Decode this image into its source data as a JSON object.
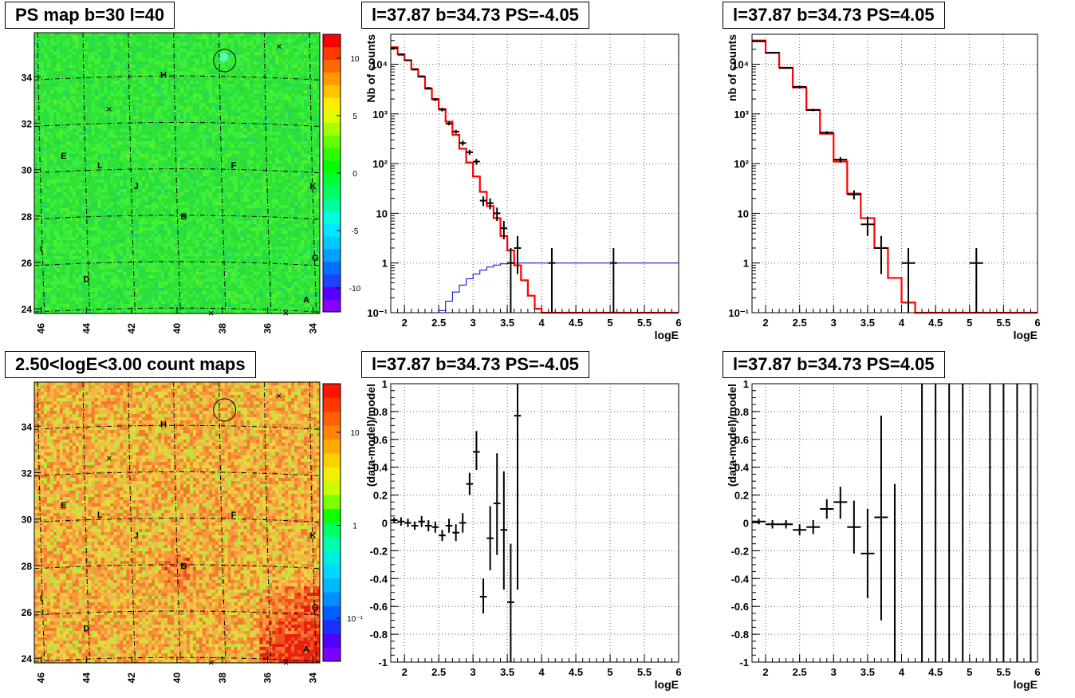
{
  "panels": [
    {
      "title": "PS map b=30 l=40",
      "type": "heatmap",
      "xticks": [
        46,
        44,
        42,
        40,
        38,
        36,
        34
      ],
      "yticks": [
        24,
        26,
        28,
        30,
        32,
        34
      ],
      "colorbar": {
        "scale": "linear",
        "ticks": [
          "10",
          "5",
          "0",
          "-5",
          "-10"
        ]
      },
      "sources": [
        {
          "label": "H",
          "l": 40.6,
          "b": 34.1
        },
        {
          "label": "E",
          "l": 45.0,
          "b": 30.6
        },
        {
          "label": "L",
          "l": 43.4,
          "b": 30.2
        },
        {
          "label": "F",
          "l": 37.5,
          "b": 30.2
        },
        {
          "label": "J",
          "l": 41.8,
          "b": 29.3
        },
        {
          "label": "K",
          "l": 34.0,
          "b": 29.3
        },
        {
          "label": "B",
          "l": 39.7,
          "b": 28.0
        },
        {
          "label": "I",
          "l": 46.0,
          "b": 26.6
        },
        {
          "label": "G",
          "l": 33.9,
          "b": 26.2
        },
        {
          "label": "D",
          "l": 44.0,
          "b": 25.3
        },
        {
          "label": "A",
          "l": 34.3,
          "b": 24.4
        }
      ],
      "crosses": [
        {
          "l": 35.5,
          "b": 35.3
        },
        {
          "l": 43.0,
          "b": 32.6
        },
        {
          "l": 38.5,
          "b": 23.8
        },
        {
          "l": 35.2,
          "b": 23.8
        }
      ],
      "circle": {
        "l": 37.9,
        "b": 34.7
      }
    },
    {
      "title": "l=37.87 b=34.73 PS=-4.05",
      "type": "histogram",
      "ylabel": "Nb of counts",
      "xlabel": "logE",
      "yscale": "log",
      "xlim": [
        1.8,
        6
      ],
      "ylim": [
        0.1,
        40000
      ],
      "xticks": [
        2,
        2.5,
        3,
        3.5,
        4,
        4.5,
        5,
        5.5,
        6
      ],
      "ytick_labels": [
        "10⁻¹",
        "1",
        "10",
        "10²",
        "10³",
        "10⁴"
      ],
      "bin_edges": [
        1.8,
        1.9,
        2.0,
        2.1,
        2.2,
        2.3,
        2.4,
        2.5,
        2.6,
        2.7,
        2.8,
        2.9,
        3.0,
        3.1,
        3.2,
        3.3,
        3.4,
        3.5,
        3.6,
        3.7,
        3.8,
        3.9,
        4.0,
        4.1,
        4.2,
        4.3,
        4.4,
        4.5,
        4.6,
        4.7,
        4.8,
        4.9,
        5.0,
        5.1,
        5.2,
        5.3,
        5.4,
        5.5,
        5.6,
        5.7,
        5.8,
        5.9,
        6.0
      ],
      "model": [
        22000,
        16000,
        12000,
        8000,
        5600,
        3200,
        2000,
        1250,
        700,
        380,
        200,
        105,
        55,
        27,
        14,
        8,
        3.5,
        1.8,
        0.9,
        0.45,
        0.22,
        0.12,
        0.1,
        0.1,
        0.1,
        0.1,
        0.1,
        0.1,
        0.1,
        0.1,
        0.1,
        0.1,
        0.1,
        0.1,
        0.1,
        0.1,
        0.1,
        0.1,
        0.1,
        0.1,
        0.1,
        0.1
      ],
      "blue": [
        0.1,
        0.1,
        0.1,
        0.1,
        0.1,
        0.1,
        0.1,
        0.11,
        0.17,
        0.26,
        0.36,
        0.48,
        0.6,
        0.72,
        0.83,
        0.91,
        0.96,
        0.99,
        1,
        1,
        1,
        1,
        1,
        1,
        1,
        1,
        1,
        1,
        1,
        1,
        1,
        1,
        1,
        1,
        1,
        1,
        1,
        1,
        1,
        1,
        1,
        1
      ],
      "points": [
        {
          "x": 1.85,
          "y": 21000,
          "lo": 20500,
          "hi": 21500
        },
        {
          "x": 1.95,
          "y": 15500,
          "lo": 15000,
          "hi": 16000
        },
        {
          "x": 2.05,
          "y": 12000,
          "lo": 11600,
          "hi": 12400
        },
        {
          "x": 2.15,
          "y": 7800,
          "lo": 7500,
          "hi": 8100
        },
        {
          "x": 2.25,
          "y": 5700,
          "lo": 5450,
          "hi": 5950
        },
        {
          "x": 2.35,
          "y": 3300,
          "lo": 3130,
          "hi": 3470
        },
        {
          "x": 2.45,
          "y": 1950,
          "lo": 1820,
          "hi": 2080
        },
        {
          "x": 2.55,
          "y": 1220,
          "lo": 1120,
          "hi": 1320
        },
        {
          "x": 2.65,
          "y": 640,
          "lo": 590,
          "hi": 690
        },
        {
          "x": 2.75,
          "y": 440,
          "lo": 400,
          "hi": 480
        },
        {
          "x": 2.85,
          "y": 260,
          "lo": 230,
          "hi": 290
        },
        {
          "x": 2.95,
          "y": 170,
          "lo": 150,
          "hi": 190
        },
        {
          "x": 3.05,
          "y": 110,
          "lo": 95,
          "hi": 125
        },
        {
          "x": 3.15,
          "y": 18,
          "lo": 14,
          "hi": 22
        },
        {
          "x": 3.25,
          "y": 16,
          "lo": 12,
          "hi": 20
        },
        {
          "x": 3.35,
          "y": 10,
          "lo": 7,
          "hi": 13
        },
        {
          "x": 3.45,
          "y": 5,
          "lo": 3,
          "hi": 7
        },
        {
          "x": 3.55,
          "y": 1,
          "lo": 0.1,
          "hi": 2
        },
        {
          "x": 3.65,
          "y": 2,
          "lo": 0.6,
          "hi": 3.5
        },
        {
          "x": 4.15,
          "y": 1,
          "lo": 0.1,
          "hi": 2
        },
        {
          "x": 5.05,
          "y": 1,
          "lo": 0.1,
          "hi": 2
        }
      ]
    },
    {
      "title": "l=37.87 b=34.73 PS=4.05",
      "type": "histogram",
      "ylabel": "nb of counts",
      "xlabel": "logE",
      "yscale": "log",
      "xlim": [
        1.8,
        6
      ],
      "ylim": [
        0.1,
        40000
      ],
      "xticks": [
        2,
        2.5,
        3,
        3.5,
        4,
        4.5,
        5,
        5.5,
        6
      ],
      "ytick_labels": [
        "10⁻¹",
        "1",
        "10",
        "10²",
        "10³",
        "10⁴"
      ],
      "bin_edges": [
        1.8,
        2.0,
        2.2,
        2.4,
        2.6,
        2.8,
        3.0,
        3.2,
        3.4,
        3.6,
        3.8,
        4.0,
        4.2,
        4.4,
        4.6,
        4.8,
        5.0,
        5.2,
        5.4,
        5.6,
        5.8,
        6.0
      ],
      "model": [
        30000,
        17000,
        8500,
        3400,
        1200,
        400,
        110,
        25,
        8,
        2,
        0.5,
        0.16,
        0.1,
        0.1,
        0.1,
        0.1,
        0.1,
        0.1,
        0.1,
        0.1,
        0.1
      ],
      "points": [
        {
          "x": 1.9,
          "y": 29000,
          "lo": 28500,
          "hi": 29500
        },
        {
          "x": 2.1,
          "y": 17000,
          "lo": 16600,
          "hi": 17400
        },
        {
          "x": 2.3,
          "y": 8400,
          "lo": 8100,
          "hi": 8700
        },
        {
          "x": 2.5,
          "y": 3500,
          "lo": 3300,
          "hi": 3700
        },
        {
          "x": 2.7,
          "y": 1200,
          "lo": 1130,
          "hi": 1270
        },
        {
          "x": 2.9,
          "y": 420,
          "lo": 390,
          "hi": 450
        },
        {
          "x": 3.1,
          "y": 120,
          "lo": 105,
          "hi": 135
        },
        {
          "x": 3.3,
          "y": 24,
          "lo": 19,
          "hi": 29
        },
        {
          "x": 3.5,
          "y": 6,
          "lo": 3.5,
          "hi": 8.5
        },
        {
          "x": 3.7,
          "y": 2,
          "lo": 0.6,
          "hi": 3.5
        },
        {
          "x": 4.1,
          "y": 1,
          "lo": 0.1,
          "hi": 2
        },
        {
          "x": 5.1,
          "y": 1,
          "lo": 0.1,
          "hi": 2
        }
      ]
    },
    {
      "title": "2.50<logE<3.00 count maps",
      "type": "heatmap",
      "xticks": [
        46,
        44,
        42,
        40,
        38,
        36,
        34
      ],
      "yticks": [
        24,
        26,
        28,
        30,
        32,
        34
      ],
      "colorbar": {
        "scale": "log",
        "ticks": [
          "10",
          "1",
          "10⁻¹"
        ]
      }
    },
    {
      "title": "l=37.87 b=34.73 PS=-4.05",
      "type": "scatter",
      "ylabel": "(data-model)/model",
      "xlabel": "logE",
      "xlim": [
        1.8,
        6
      ],
      "ylim": [
        -1,
        1
      ],
      "xticks": [
        2,
        2.5,
        3,
        3.5,
        4,
        4.5,
        5,
        5.5,
        6
      ],
      "yticks": [
        -1,
        -0.8,
        -0.6,
        -0.4,
        -0.2,
        0,
        0.2,
        0.4,
        0.6,
        0.8,
        1
      ],
      "halfwidth": 0.05,
      "points": [
        {
          "x": 1.85,
          "y": 0.02,
          "lo": 0.0,
          "hi": 0.04
        },
        {
          "x": 1.95,
          "y": 0.01,
          "lo": -0.02,
          "hi": 0.04
        },
        {
          "x": 2.05,
          "y": 0.0,
          "lo": -0.03,
          "hi": 0.03
        },
        {
          "x": 2.15,
          "y": -0.02,
          "lo": -0.05,
          "hi": 0.01
        },
        {
          "x": 2.25,
          "y": 0.01,
          "lo": -0.03,
          "hi": 0.05
        },
        {
          "x": 2.35,
          "y": -0.02,
          "lo": -0.06,
          "hi": 0.02
        },
        {
          "x": 2.45,
          "y": -0.03,
          "lo": -0.07,
          "hi": 0.01
        },
        {
          "x": 2.55,
          "y": -0.09,
          "lo": -0.13,
          "hi": -0.05
        },
        {
          "x": 2.65,
          "y": -0.02,
          "lo": -0.07,
          "hi": 0.03
        },
        {
          "x": 2.75,
          "y": -0.07,
          "lo": -0.13,
          "hi": -0.01
        },
        {
          "x": 2.85,
          "y": 0.0,
          "lo": -0.07,
          "hi": 0.07
        },
        {
          "x": 2.95,
          "y": 0.28,
          "lo": 0.2,
          "hi": 0.36
        },
        {
          "x": 3.05,
          "y": 0.51,
          "lo": 0.38,
          "hi": 0.66
        },
        {
          "x": 3.15,
          "y": -0.53,
          "lo": -0.65,
          "hi": -0.4
        },
        {
          "x": 3.25,
          "y": -0.11,
          "lo": -0.34,
          "hi": 0.12
        },
        {
          "x": 3.35,
          "y": 0.14,
          "lo": -0.23,
          "hi": 0.5
        },
        {
          "x": 3.45,
          "y": -0.05,
          "lo": -0.48,
          "hi": 0.37
        },
        {
          "x": 3.55,
          "y": -0.57,
          "lo": -1.0,
          "hi": -0.15
        },
        {
          "x": 3.65,
          "y": 0.77,
          "lo": -0.48,
          "hi": 1.0
        }
      ]
    },
    {
      "title": "l=37.87 b=34.73 PS=4.05",
      "type": "scatter",
      "ylabel": "(data-model)/model",
      "xlabel": "logE",
      "xlim": [
        1.8,
        6
      ],
      "ylim": [
        -1,
        1
      ],
      "xticks": [
        2,
        2.5,
        3,
        3.5,
        4,
        4.5,
        5,
        5.5,
        6
      ],
      "yticks": [
        -1,
        -0.8,
        -0.6,
        -0.4,
        -0.2,
        0,
        0.2,
        0.4,
        0.6,
        0.8,
        1
      ],
      "halfwidth": 0.1,
      "points": [
        {
          "x": 1.9,
          "y": 0.01,
          "lo": -0.01,
          "hi": 0.03
        },
        {
          "x": 2.1,
          "y": -0.01,
          "lo": -0.04,
          "hi": 0.02
        },
        {
          "x": 2.3,
          "y": -0.01,
          "lo": -0.04,
          "hi": 0.02
        },
        {
          "x": 2.5,
          "y": -0.05,
          "lo": -0.09,
          "hi": -0.01
        },
        {
          "x": 2.7,
          "y": -0.03,
          "lo": -0.08,
          "hi": 0.02
        },
        {
          "x": 2.9,
          "y": 0.1,
          "lo": 0.03,
          "hi": 0.17
        },
        {
          "x": 3.1,
          "y": 0.15,
          "lo": 0.03,
          "hi": 0.26
        },
        {
          "x": 3.3,
          "y": -0.03,
          "lo": -0.22,
          "hi": 0.16
        },
        {
          "x": 3.5,
          "y": -0.22,
          "lo": -0.54,
          "hi": 0.1
        },
        {
          "x": 3.7,
          "y": 0.04,
          "lo": -0.7,
          "hi": 0.77
        },
        {
          "x": 3.9,
          "y": null,
          "lo": -1.0,
          "hi": 0.28
        },
        {
          "x": 4.3,
          "y": null,
          "lo": -1.0,
          "hi": 1.0
        },
        {
          "x": 4.5,
          "y": null,
          "lo": -1.0,
          "hi": 1.0
        },
        {
          "x": 4.7,
          "y": null,
          "lo": -1.0,
          "hi": 1.0
        },
        {
          "x": 4.9,
          "y": null,
          "lo": -1.0,
          "hi": 1.0
        },
        {
          "x": 5.3,
          "y": null,
          "lo": -1.0,
          "hi": 1.0
        },
        {
          "x": 5.5,
          "y": null,
          "lo": -1.0,
          "hi": 1.0
        },
        {
          "x": 5.7,
          "y": null,
          "lo": -1.0,
          "hi": 1.0
        },
        {
          "x": 5.9,
          "y": null,
          "lo": -1.0,
          "hi": 1.0
        }
      ]
    }
  ],
  "colors": {
    "model": "#ff0000",
    "blue_curve": "#0000cc",
    "data": "#000000",
    "grid": "#666666"
  }
}
